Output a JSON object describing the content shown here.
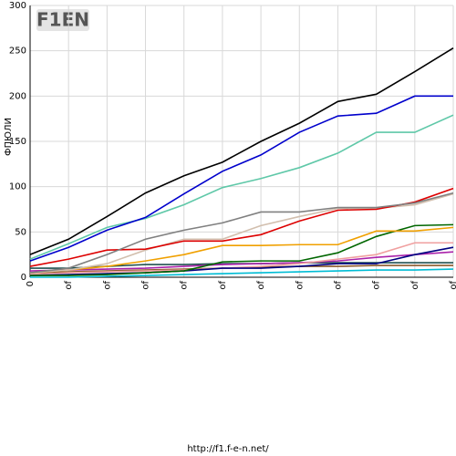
{
  "logo": "F1EN",
  "footer": "http://f1.f-e-n.net/",
  "chart_data": {
    "type": "line",
    "y_label": "ФПЮЛИ",
    "categories": [
      "0",
      "of",
      "of",
      "of",
      "of",
      "of",
      "of",
      "of",
      "of",
      "of",
      "of",
      "of"
    ],
    "ylim": [
      0,
      300
    ],
    "yticks": [
      0,
      50,
      100,
      150,
      200,
      250,
      300
    ],
    "grid": true,
    "series": [
      {
        "color": "#000000",
        "values": [
          25,
          42,
          67,
          93,
          112,
          127,
          150,
          170,
          194,
          202,
          227,
          253
        ]
      },
      {
        "color": "#0000cc",
        "values": [
          18,
          33,
          52,
          66,
          92,
          117,
          135,
          160,
          178,
          181,
          200,
          200
        ]
      },
      {
        "color": "#5fc8a8",
        "values": [
          20,
          37,
          55,
          65,
          80,
          99,
          109,
          121,
          137,
          160,
          160,
          179
        ]
      },
      {
        "color": "#808080",
        "values": [
          5,
          10,
          25,
          42,
          52,
          60,
          72,
          72,
          77,
          77,
          82,
          93
        ]
      },
      {
        "color": "#dd0000",
        "values": [
          12,
          20,
          30,
          31,
          40,
          40,
          47,
          62,
          74,
          75,
          83,
          98
        ]
      },
      {
        "color": "#d2bfae",
        "values": [
          5,
          8,
          15,
          30,
          42,
          42,
          57,
          67,
          76,
          76,
          80,
          92
        ]
      },
      {
        "color": "#f0a000",
        "values": [
          5,
          8,
          12,
          18,
          25,
          35,
          35,
          36,
          36,
          51,
          51,
          55
        ]
      },
      {
        "color": "#006600",
        "values": [
          2,
          2,
          3,
          5,
          7,
          17,
          18,
          18,
          27,
          45,
          57,
          58
        ]
      },
      {
        "color": "#000080",
        "values": [
          2,
          3,
          4,
          5,
          7,
          10,
          10,
          12,
          15,
          15,
          25,
          33
        ]
      },
      {
        "color": "#f0a0a0",
        "values": [
          3,
          5,
          6,
          7,
          8,
          10,
          12,
          15,
          20,
          25,
          38,
          38
        ]
      },
      {
        "color": "#aa22aa",
        "values": [
          7,
          8,
          9,
          10,
          12,
          14,
          15,
          16,
          18,
          22,
          25,
          28
        ]
      },
      {
        "color": "#205050",
        "values": [
          10,
          10,
          12,
          14,
          14,
          15,
          15,
          16,
          16,
          16,
          16,
          16
        ]
      },
      {
        "color": "#00bcd4",
        "values": [
          0,
          0,
          1,
          2,
          3,
          4,
          5,
          6,
          7,
          8,
          8,
          9
        ]
      },
      {
        "color": "#8b5a2b",
        "values": [
          5,
          6,
          7,
          8,
          9,
          10,
          11,
          12,
          12,
          13,
          13,
          13
        ]
      }
    ]
  }
}
